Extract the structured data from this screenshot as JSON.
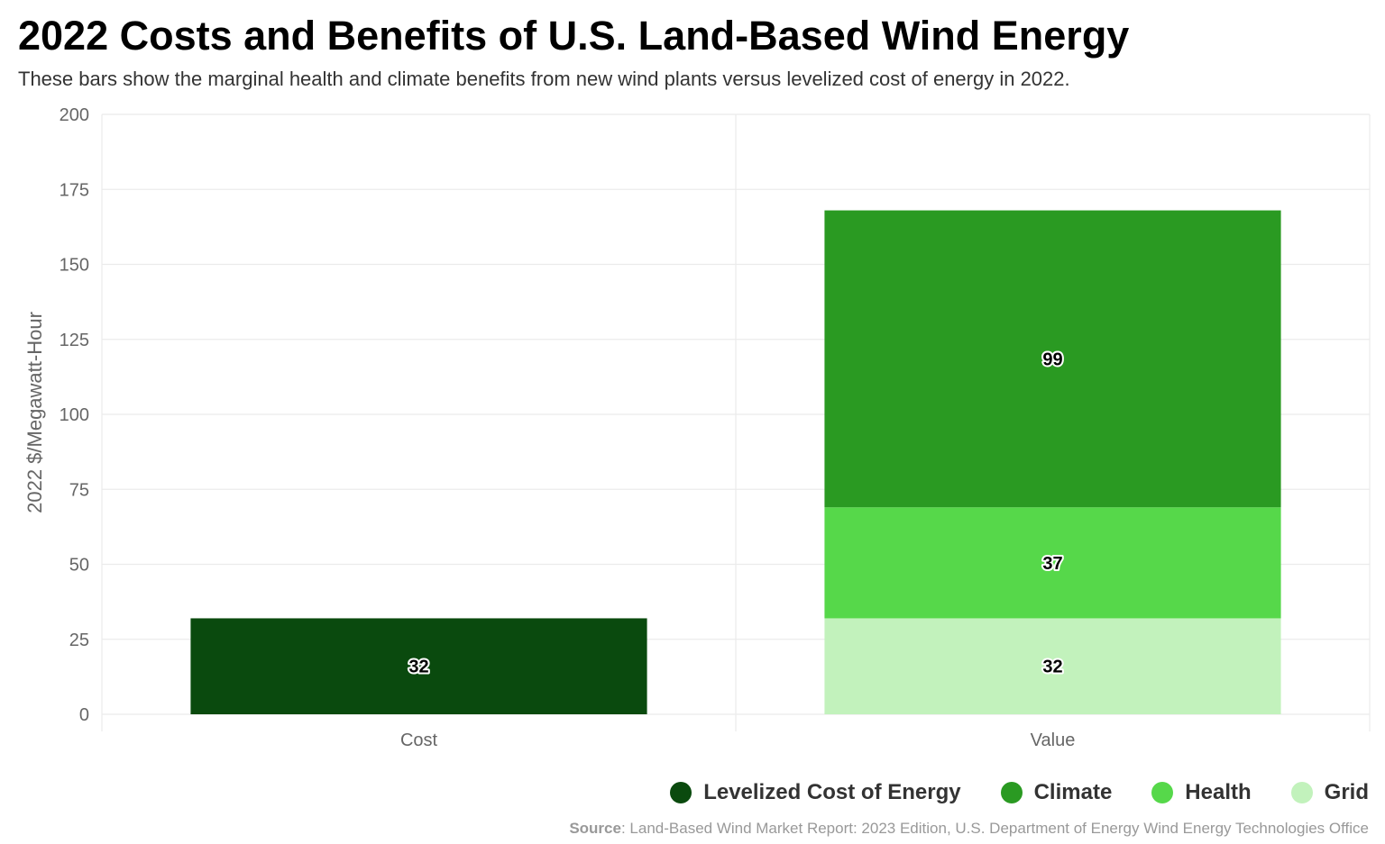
{
  "chart_data": {
    "type": "bar",
    "stacked": true,
    "title": "2022 Costs and Benefits of U.S. Land-Based Wind Energy",
    "subtitle": "These bars show the marginal health and climate benefits from new wind plants versus levelized cost of energy in 2022.",
    "ylabel": "2022 $/Megawatt-Hour",
    "ylim": [
      0,
      200
    ],
    "yticks": [
      "0",
      "25",
      "50",
      "75",
      "100",
      "125",
      "150",
      "175",
      "200"
    ],
    "categories": [
      "Cost",
      "Value"
    ],
    "series": [
      {
        "name": "Levelized Cost of Energy",
        "color": "#0a4a0e",
        "values": [
          32,
          0
        ],
        "labels": [
          "32",
          ""
        ]
      },
      {
        "name": "Grid",
        "color": "#c2f2bc",
        "values": [
          0,
          32
        ],
        "labels": [
          "",
          "32"
        ]
      },
      {
        "name": "Health",
        "color": "#56d84a",
        "values": [
          0,
          37
        ],
        "labels": [
          "",
          "37"
        ]
      },
      {
        "name": "Climate",
        "color": "#2a9a22",
        "values": [
          0,
          99
        ],
        "labels": [
          "",
          "99"
        ]
      }
    ],
    "grid": true,
    "legend_position": "bottom-right",
    "legend": [
      {
        "label": "Levelized Cost of Energy",
        "color": "#0a4a0e"
      },
      {
        "label": "Climate",
        "color": "#2a9a22"
      },
      {
        "label": "Health",
        "color": "#56d84a"
      },
      {
        "label": "Grid",
        "color": "#c2f2bc"
      }
    ]
  },
  "source": {
    "key": "Source",
    "text": ": Land-Based Wind Market Report: 2023 Edition, U.S. Department of Energy Wind Energy Technologies Office"
  }
}
